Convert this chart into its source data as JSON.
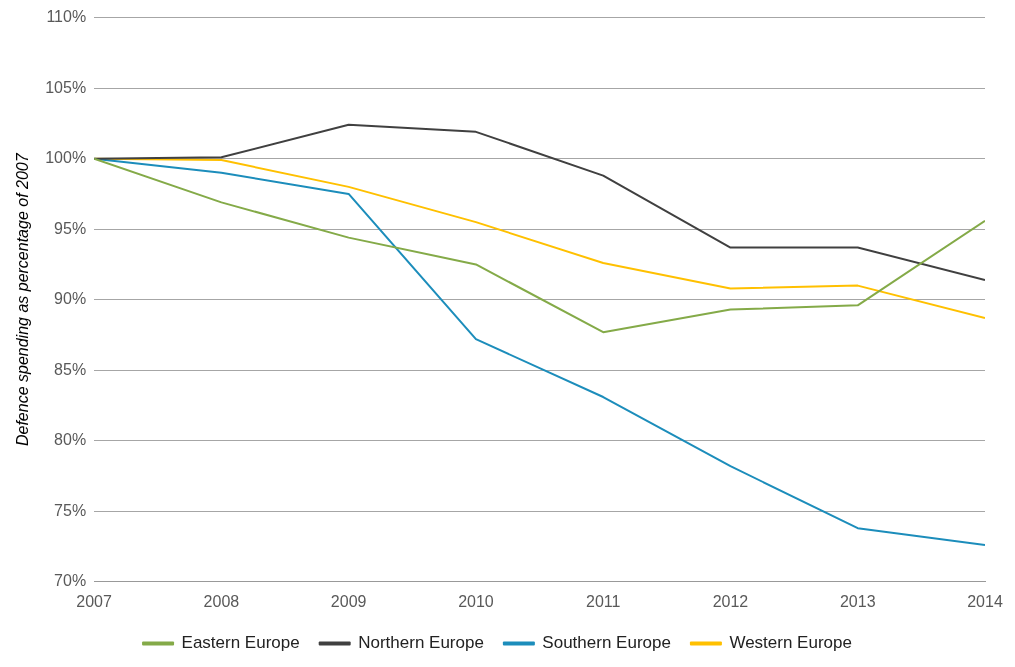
{
  "chart_data": {
    "type": "line",
    "ylabel": "Defence spending as percentage of 2007",
    "x": [
      2007,
      2008,
      2009,
      2010,
      2011,
      2012,
      2013,
      2014
    ],
    "series": [
      {
        "name": "Eastern Europe",
        "color": "#84aa48",
        "values": [
          100,
          96.9,
          94.4,
          92.5,
          87.7,
          89.3,
          89.6,
          95.6
        ]
      },
      {
        "name": "Northern Europe",
        "color": "#404040",
        "values": [
          100,
          100.1,
          102.4,
          101.9,
          98.8,
          93.7,
          93.7,
          91.4
        ]
      },
      {
        "name": "Southern Europe",
        "color": "#1c8dbb",
        "values": [
          100,
          99.0,
          97.5,
          87.2,
          83.1,
          78.2,
          73.8,
          72.6
        ]
      },
      {
        "name": "Western Europe",
        "color": "#ffc000",
        "values": [
          100,
          99.9,
          98.0,
          95.5,
          92.6,
          90.8,
          91.0,
          88.7
        ]
      }
    ],
    "xlim": [
      2007,
      2014
    ],
    "xticks": [
      2007,
      2008,
      2009,
      2010,
      2011,
      2012,
      2013,
      2014
    ],
    "ylim": [
      70,
      110
    ],
    "yticks": [
      {
        "value": 70,
        "label": "70%"
      },
      {
        "value": 75,
        "label": "75%"
      },
      {
        "value": 80,
        "label": "80%"
      },
      {
        "value": 85,
        "label": "85%"
      },
      {
        "value": 90,
        "label": "90%"
      },
      {
        "value": 95,
        "label": "95%"
      },
      {
        "value": 100,
        "label": "100%"
      },
      {
        "value": 105,
        "label": "105%"
      },
      {
        "value": 110,
        "label": "110%"
      }
    ],
    "grid": "y",
    "legend": "bottom",
    "marker": "none",
    "line_style": "solid"
  }
}
